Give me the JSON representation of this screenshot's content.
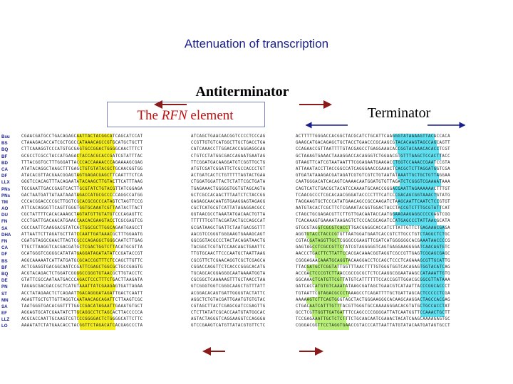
{
  "title": "Attenuation of transcription",
  "labels": {
    "antiterminator_top": "Antiterminator",
    "terminator": "Terminator",
    "rfn_element_prefix": "The ",
    "rfn_element_italic": "RFN",
    "rfn_element_suffix": " element",
    "antiterminator_bottom": "Antiterminator"
  },
  "species": [
    "Bsu",
    "BS",
    "BQ",
    "BF",
    "BD",
    "CA",
    "DF",
    "LLX",
    "PNs",
    "PNs",
    "TM",
    "AO",
    "DU",
    "FN",
    "SA",
    "DHA",
    "FN",
    "CA",
    "DF",
    "BS",
    "BF",
    "BQ",
    "DE",
    "PN",
    "ST",
    "MN",
    "SA",
    "EF",
    "LLZ",
    "LO"
  ],
  "colors": {
    "title": "#1a1f8c",
    "rfn_label": "#c01010",
    "highlight_yellow": "#f4ee1e",
    "highlight_cyan": "#5fe0f0",
    "highlight_green": "#b8f07a",
    "arrow": "#8b1a1a"
  }
}
